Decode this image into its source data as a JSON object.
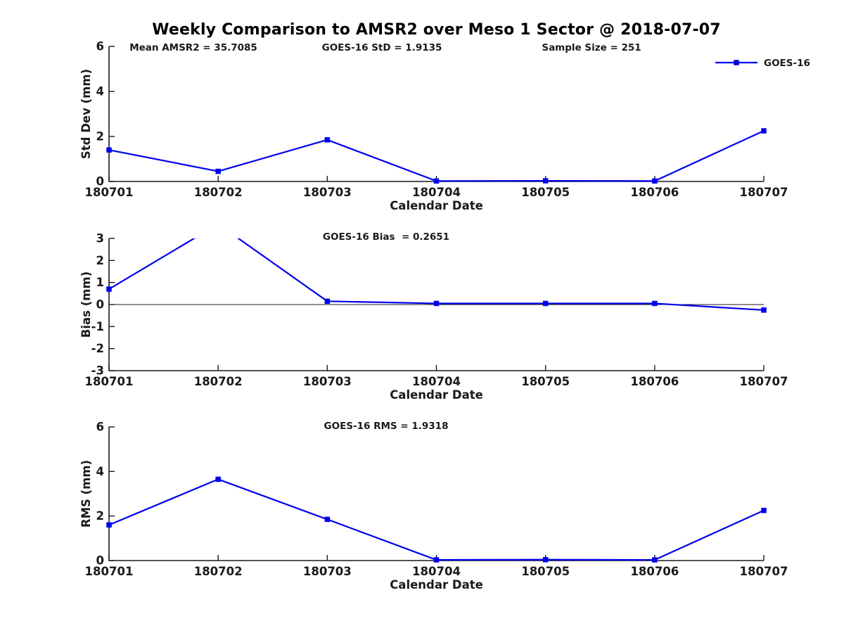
{
  "title": "Weekly Comparison to AMSR2 over Meso 1 Sector @ 2018-07-07",
  "colors": {
    "series_line": "#0000EE",
    "axis": "#1a1a1a",
    "text": "#1a1a1a",
    "background": "#ffffff"
  },
  "legend": {
    "label": "GOES-16"
  },
  "chart_data": [
    {
      "type": "line",
      "name": "std-dev-weekly",
      "categories": [
        "180701",
        "180702",
        "180703",
        "180704",
        "180705",
        "180706",
        "180707"
      ],
      "series": [
        {
          "name": "GOES-16",
          "values": [
            1.4,
            0.45,
            1.85,
            0.02,
            0.03,
            0.02,
            2.25
          ]
        }
      ],
      "xlabel": "Calendar Date",
      "ylabel": "Std Dev (mm)",
      "ylim": [
        0,
        6
      ],
      "yticks": [
        0,
        2,
        4,
        6
      ],
      "grid": false,
      "legend_position": "top-right",
      "annotations": [
        "Mean AMSR2 = 35.7085",
        "GOES-16 StD = 1.9135",
        "Sample Size = 251"
      ]
    },
    {
      "type": "line",
      "name": "bias-weekly",
      "categories": [
        "180701",
        "180702",
        "180703",
        "180704",
        "180705",
        "180706",
        "180707"
      ],
      "series": [
        {
          "name": "GOES-16",
          "values": [
            0.7,
            3.65,
            0.15,
            0.05,
            0.05,
            0.05,
            -0.25
          ]
        }
      ],
      "xlabel": "Calendar Date",
      "ylabel": "Bias (mm)",
      "ylim": [
        -3,
        3
      ],
      "yticks": [
        -3,
        -2,
        -1,
        0,
        1,
        2,
        3
      ],
      "grid": false,
      "zero_line": true,
      "annotations": [
        "GOES-16 Bias  = 0.2651"
      ]
    },
    {
      "type": "line",
      "name": "rms-weekly",
      "categories": [
        "180701",
        "180702",
        "180703",
        "180704",
        "180705",
        "180706",
        "180707"
      ],
      "series": [
        {
          "name": "GOES-16",
          "values": [
            1.6,
            3.65,
            1.85,
            0.03,
            0.04,
            0.03,
            2.25
          ]
        }
      ],
      "xlabel": "Calendar Date",
      "ylabel": "RMS (mm)",
      "ylim": [
        0,
        6
      ],
      "yticks": [
        0,
        2,
        4,
        6
      ],
      "grid": false,
      "annotations": [
        "GOES-16 RMS = 1.9318"
      ]
    }
  ]
}
